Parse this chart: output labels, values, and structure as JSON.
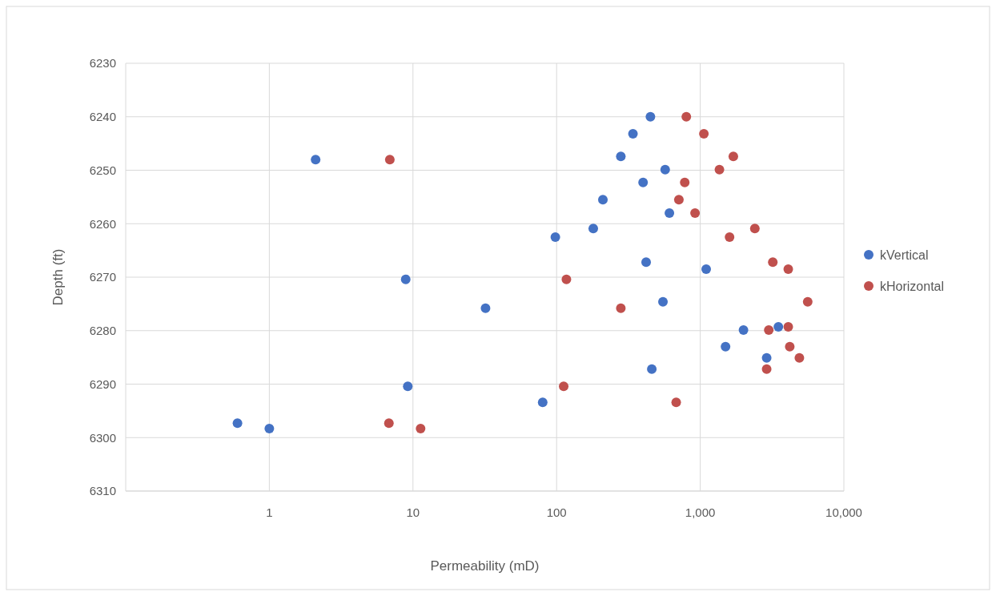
{
  "chart_data": {
    "type": "scatter",
    "xlabel": "Permeability (mD)",
    "ylabel": "Depth (ft)",
    "log": "x",
    "xlim": [
      0.1,
      10000
    ],
    "xticks": [
      1,
      10,
      100,
      {
        "value": 1000,
        "label": "1,000"
      },
      {
        "value": 10000,
        "label": "10,000"
      }
    ],
    "ylim": [
      6310,
      6230
    ],
    "yticks": [
      6230,
      6240,
      6250,
      6260,
      6270,
      6280,
      6290,
      6300,
      6310
    ],
    "grid": true,
    "legend": "right",
    "marker": "circle",
    "series": [
      {
        "name": "kVertical",
        "color": "#4472c4",
        "x": [
          450,
          340,
          280,
          2.1,
          570,
          400,
          210,
          610,
          180,
          98,
          420,
          1100,
          8.9,
          32,
          550,
          3500,
          2000,
          1500,
          2900,
          460,
          9.2,
          80,
          0.6,
          1.0
        ],
        "values": [
          6240,
          6243.2,
          6247.4,
          6248,
          6249.9,
          6252.3,
          6255.5,
          6258,
          6260.9,
          6262.5,
          6267.2,
          6268.5,
          6270.4,
          6275.8,
          6274.6,
          6279.3,
          6279.9,
          6283,
          6285.1,
          6287.2,
          6290.4,
          6293.4,
          6297.3,
          6298.3
        ]
      },
      {
        "name": "kHorizontal",
        "color": "#c0504d",
        "x": [
          800,
          1060,
          1700,
          6.9,
          1360,
          780,
          710,
          920,
          2400,
          1600,
          3200,
          4100,
          117,
          5600,
          280,
          4100,
          3000,
          4200,
          4900,
          2900,
          112,
          680,
          6.8,
          11.3
        ],
        "values": [
          6240,
          6243.2,
          6247.4,
          6248,
          6249.9,
          6252.3,
          6255.5,
          6258,
          6260.9,
          6262.5,
          6267.2,
          6268.5,
          6270.4,
          6274.6,
          6275.8,
          6279.3,
          6279.9,
          6283,
          6285.1,
          6287.2,
          6290.4,
          6293.4,
          6297.3,
          6298.3
        ]
      }
    ]
  }
}
